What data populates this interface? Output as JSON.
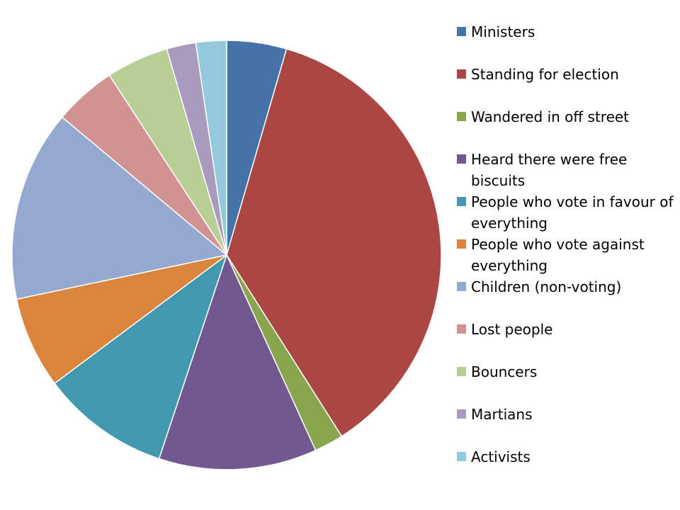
{
  "chart_data": {
    "type": "pie",
    "title": "",
    "legend_position": "right",
    "categories": [
      "Ministers",
      "Standing for election",
      "Wandered in off street",
      "Heard there were free biscuits",
      "People who vote in favour of everything",
      "People who vote against everything",
      "Children (non-voting)",
      "Lost people",
      "Bouncers",
      "Martians",
      "Activists"
    ],
    "values": [
      4.5,
      36.5,
      2.2,
      11.9,
      9.7,
      6.9,
      14.4,
      4.7,
      4.7,
      2.2,
      2.3
    ],
    "colors": [
      "#4572A7",
      "#AA4643",
      "#89A54E",
      "#71588F",
      "#4198AF",
      "#DB843D",
      "#93A9CF",
      "#D19392",
      "#B9CD96",
      "#A99BBD",
      "#92C9DB"
    ]
  }
}
